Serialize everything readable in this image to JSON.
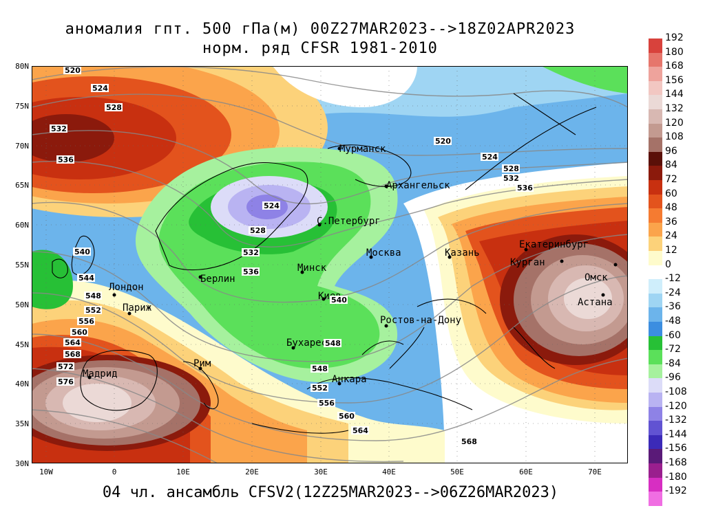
{
  "title_line1": "аномалия гпт. 500 гПа(м) 00Z27MAR2023-->18Z02APR2023",
  "title_line2": "норм. ряд CFSR 1981-2010",
  "footer": "04 чл. ансамбль CFSV2(12Z25MAR2023-->06Z26MAR2023)",
  "lat_labels": [
    "80N",
    "75N",
    "70N",
    "65N",
    "60N",
    "55N",
    "50N",
    "45N",
    "40N",
    "35N",
    "30N"
  ],
  "lon_labels": [
    "10W",
    "0",
    "10E",
    "20E",
    "30E",
    "40E",
    "50E",
    "60E",
    "70E"
  ],
  "legend": {
    "labels": [
      "192",
      "180",
      "168",
      "156",
      "144",
      "132",
      "120",
      "108",
      "96",
      "84",
      "72",
      "60",
      "48",
      "36",
      "24",
      "12",
      "0",
      "-12",
      "-24",
      "-36",
      "-48",
      "-60",
      "-72",
      "-84",
      "-96",
      "-108",
      "-120",
      "-132",
      "-144",
      "-156",
      "-168",
      "-180",
      "-192"
    ],
    "colors": [
      "#d8423c",
      "#e6766c",
      "#eea39c",
      "#f2c7c2",
      "#ebd9d6",
      "#d8b8b2",
      "#c39a90",
      "#a57268",
      "#5a1008",
      "#8b1a0c",
      "#c83010",
      "#e3531d",
      "#f57b31",
      "#fba44b",
      "#fcd27a",
      "#fefbcc",
      "#ffffff",
      "#cfeefb",
      "#9fd5f3",
      "#6cb4eb",
      "#3c8ee0",
      "#27c036",
      "#5be05a",
      "#a6f19e",
      "#dcdcf8",
      "#b9b3f2",
      "#8e82e6",
      "#6153d2",
      "#3b2ab8",
      "#5a1a78",
      "#9a1f8e",
      "#d72ec2",
      "#f06ee2"
    ]
  },
  "cities": [
    {
      "name": "Мурманск"
    },
    {
      "name": "Архангельск"
    },
    {
      "name": "С.Петербург"
    },
    {
      "name": "Москва"
    },
    {
      "name": "Казань"
    },
    {
      "name": "Екатеринбург"
    },
    {
      "name": "Курган"
    },
    {
      "name": "Омск"
    },
    {
      "name": "Астана"
    },
    {
      "name": "Минск"
    },
    {
      "name": "Киев"
    },
    {
      "name": "Берлин"
    },
    {
      "name": "Лондон"
    },
    {
      "name": "Париж"
    },
    {
      "name": "Мадрид"
    },
    {
      "name": "Рим"
    },
    {
      "name": "Бухарест"
    },
    {
      "name": "Анкара"
    },
    {
      "name": "Ростов-на-Дону"
    }
  ],
  "contour_labels": [
    "520",
    "524",
    "528",
    "532",
    "536",
    "520",
    "524",
    "528",
    "532",
    "536",
    "524",
    "528",
    "532",
    "536",
    "540",
    "544",
    "548",
    "552",
    "556",
    "560",
    "564",
    "568",
    "572",
    "576",
    "540",
    "548",
    "552",
    "556",
    "560",
    "564",
    "568",
    "548"
  ]
}
